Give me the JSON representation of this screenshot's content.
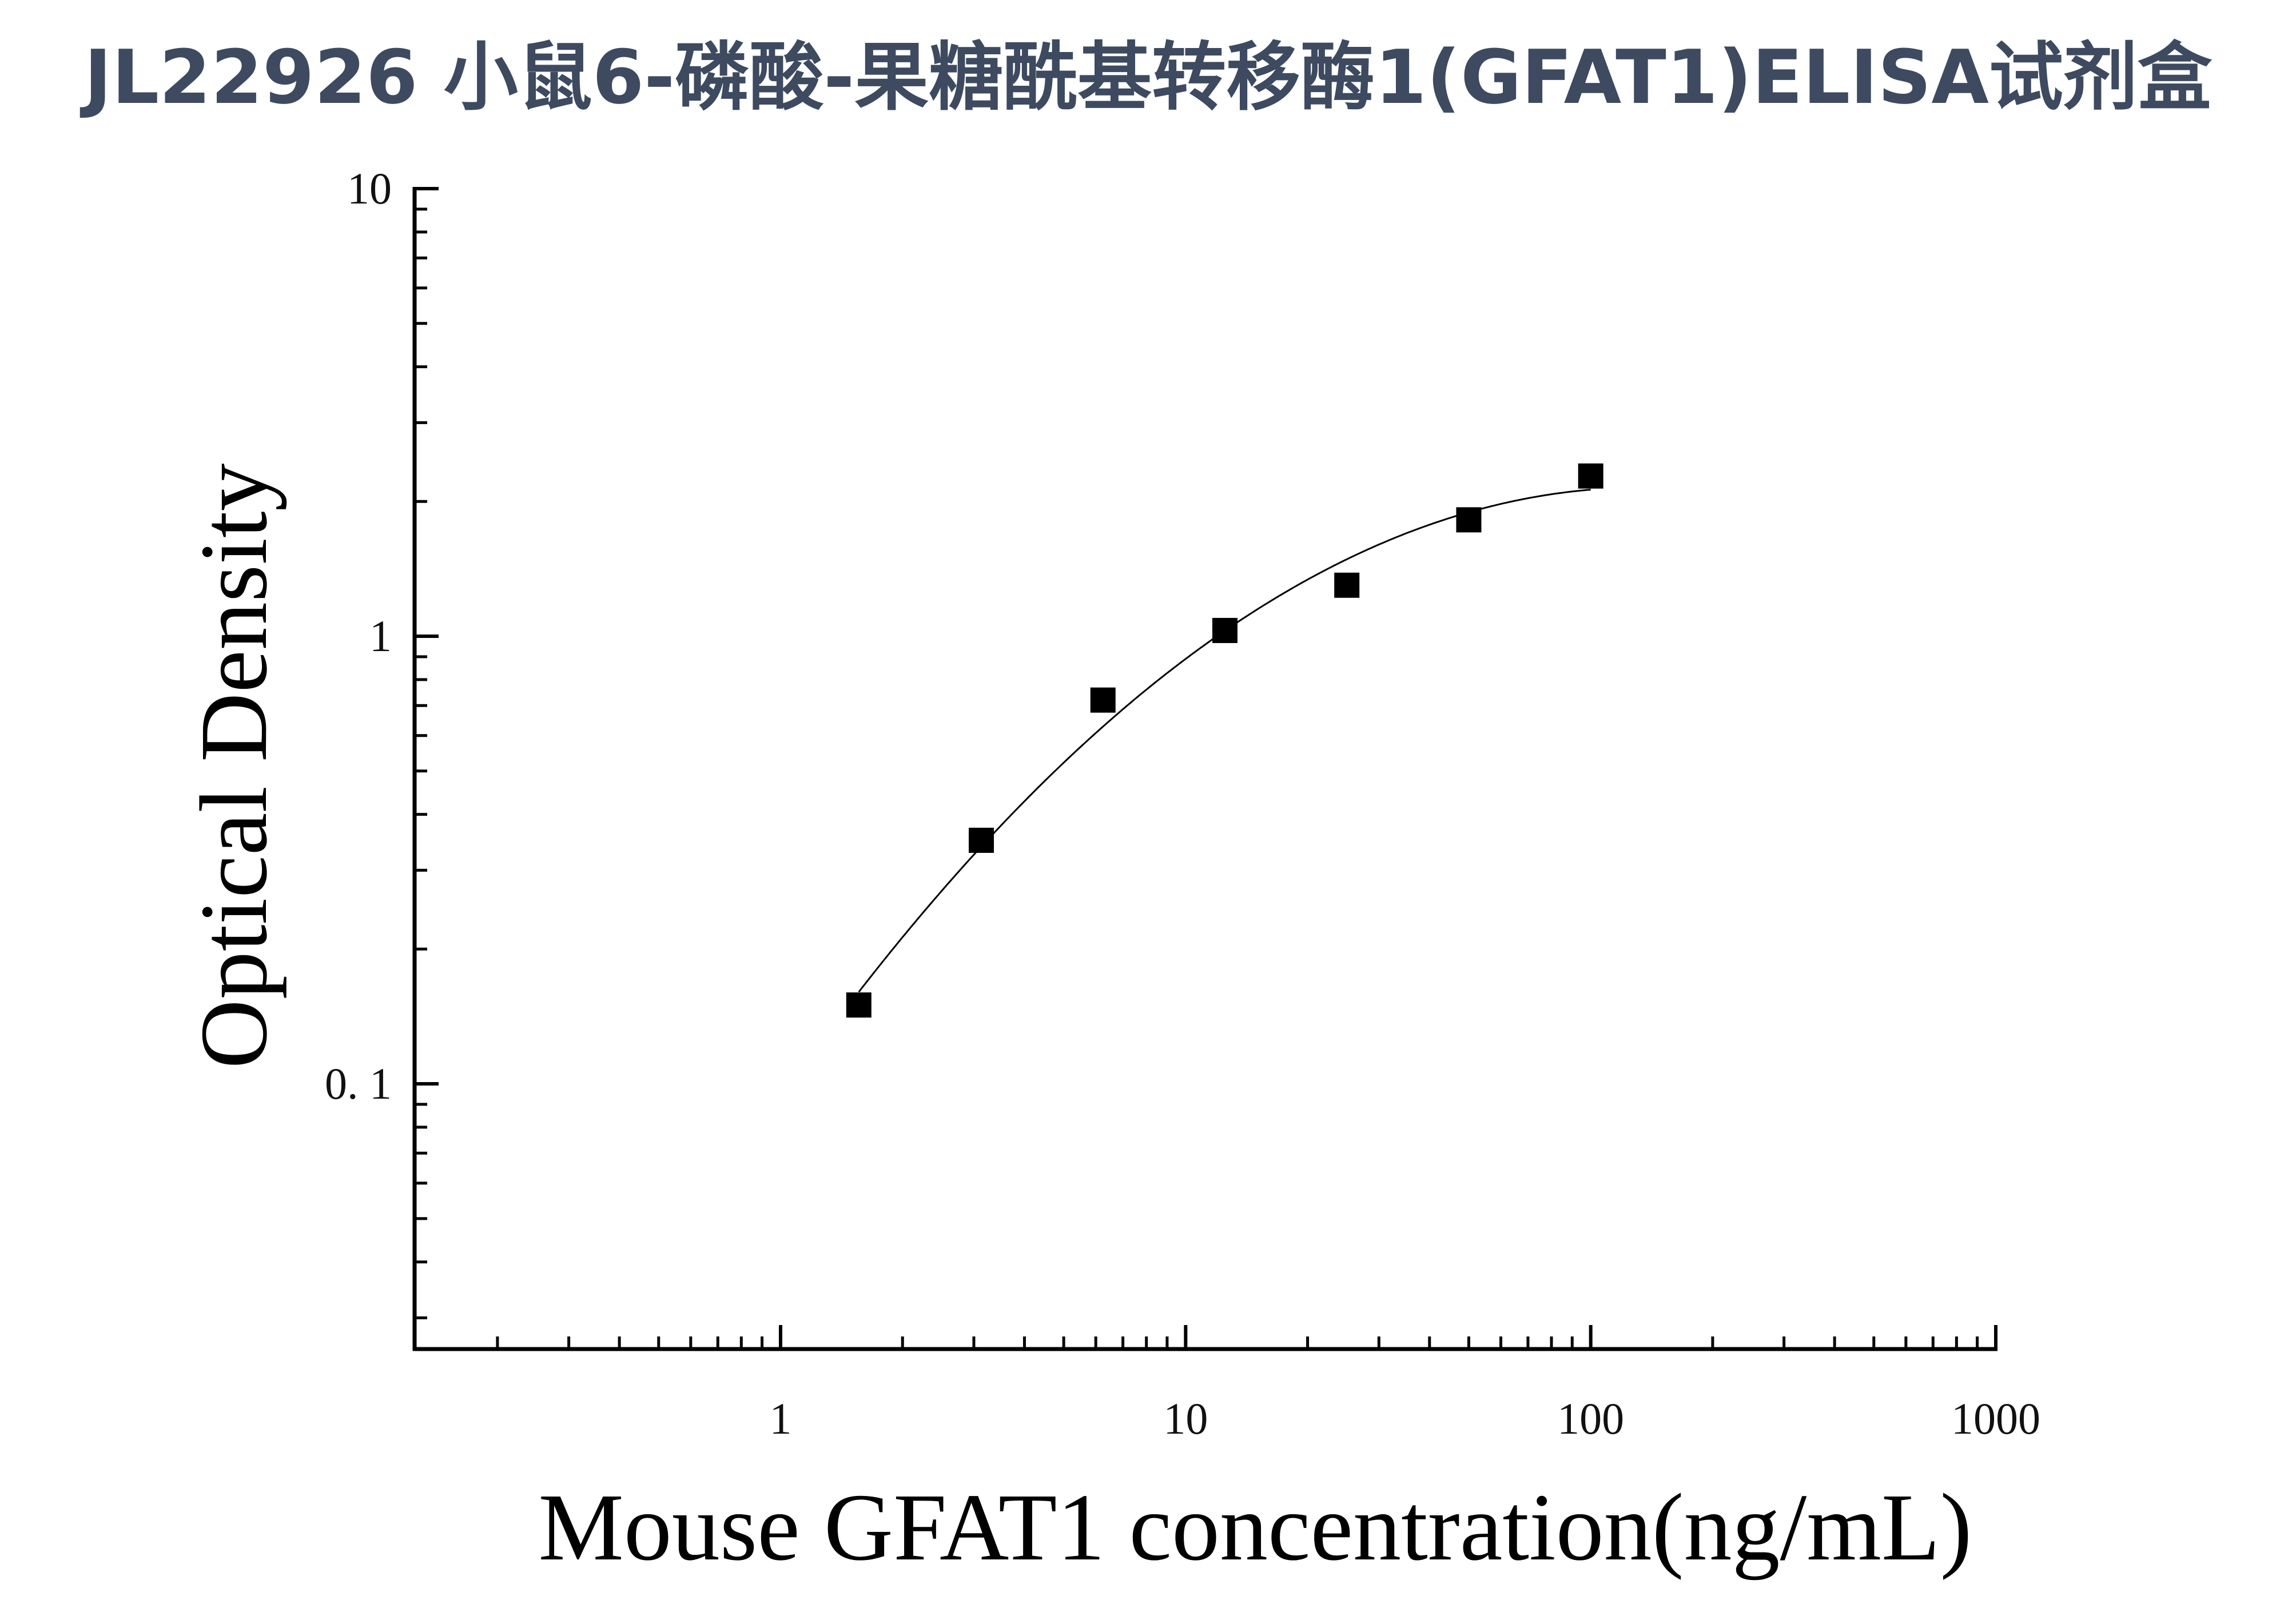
{
  "chart_data": {
    "type": "scatter",
    "title": "JL22926 小鼠6-磷酸-果糖酰基转移酶1(GFAT1)ELISA试剂盒",
    "xlabel": "Mouse GFAT1 concentration(ng/mL)",
    "ylabel": "Optical Density",
    "x_scale": "log",
    "y_scale": "log",
    "xlim": [
      0.13,
      1000
    ],
    "ylim": [
      0.026,
      10
    ],
    "x_ticks": [
      {
        "value": 1,
        "label": "1"
      },
      {
        "value": 10,
        "label": "10"
      },
      {
        "value": 100,
        "label": "100"
      },
      {
        "value": 1000,
        "label": "1000"
      }
    ],
    "y_ticks": [
      {
        "value": 0.1,
        "label": "0. 1"
      },
      {
        "value": 1,
        "label": "1"
      },
      {
        "value": 10,
        "label": "10"
      }
    ],
    "grid": false,
    "legend": "none",
    "marker": "square",
    "color": "#000000",
    "x": [
      1.56,
      3.13,
      6.25,
      12.5,
      25,
      50,
      100
    ],
    "y": [
      0.15,
      0.35,
      0.72,
      1.03,
      1.3,
      1.82,
      2.28
    ],
    "fit_curve": true
  }
}
